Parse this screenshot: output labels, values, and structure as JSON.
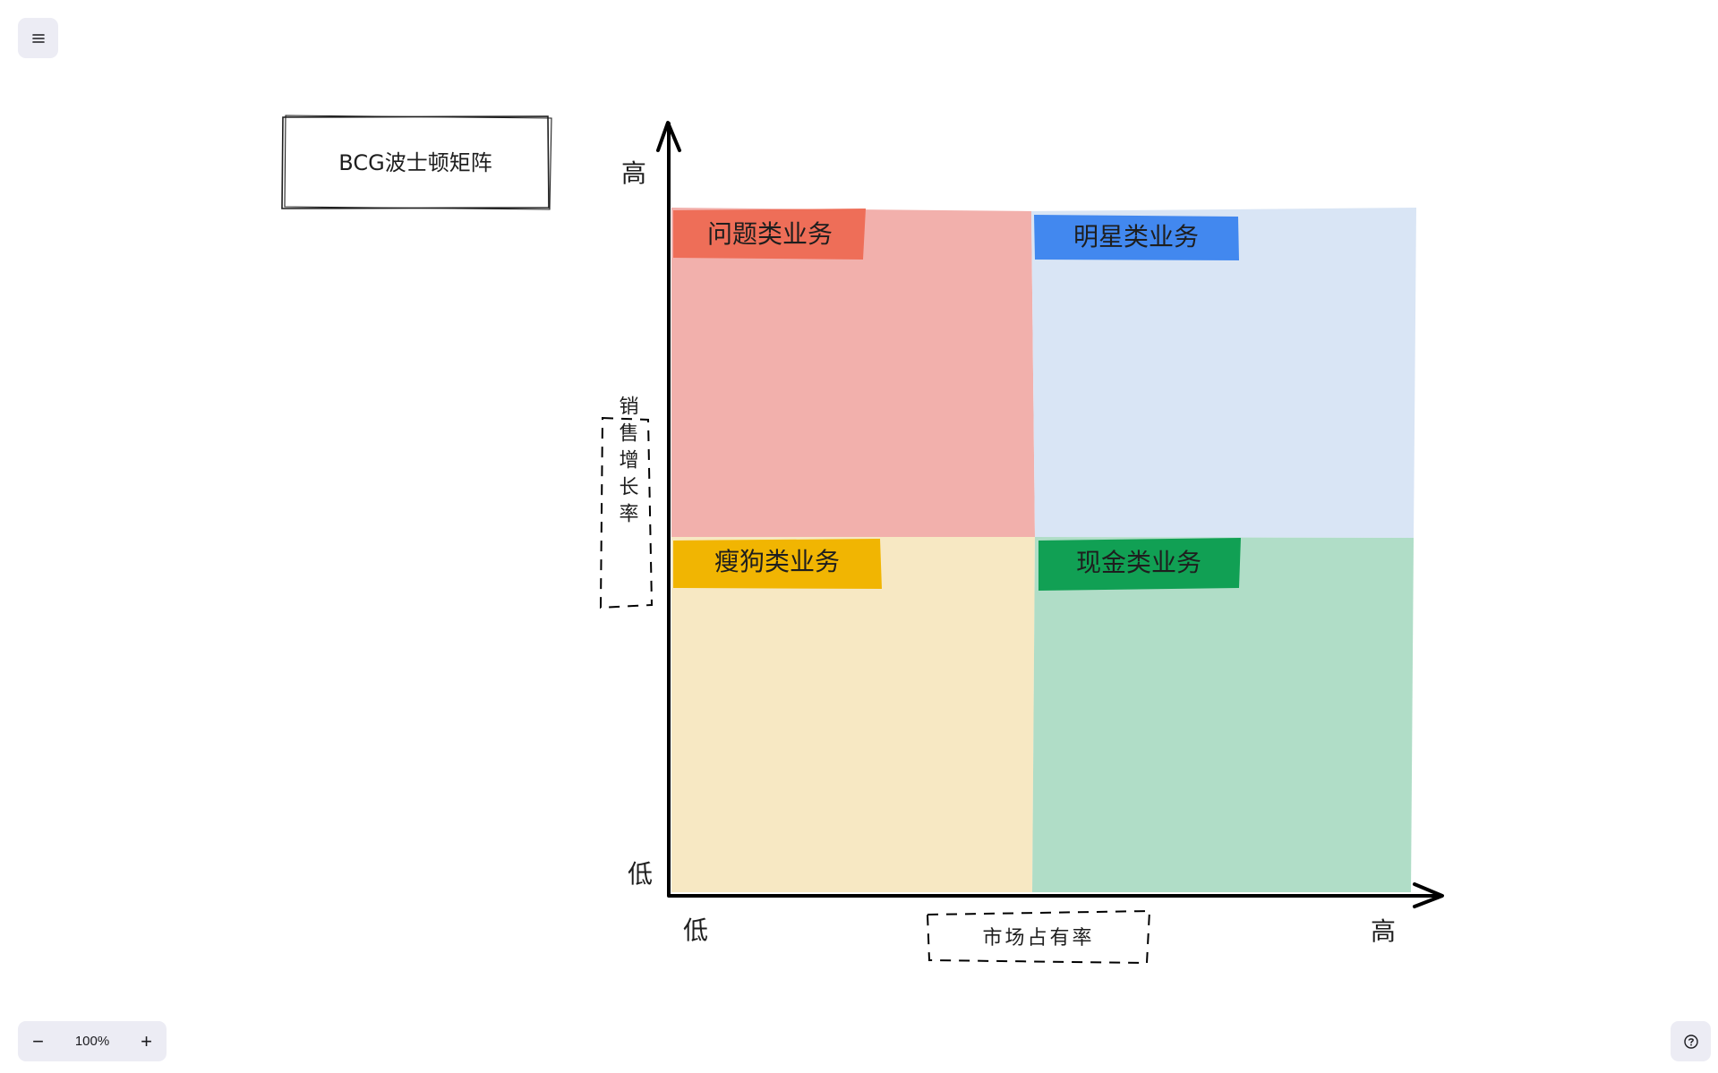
{
  "diagram": {
    "title": "BCG波士顿矩阵",
    "y_axis": {
      "label": "销售增长率",
      "high": "高",
      "low": "低"
    },
    "x_axis": {
      "label": "市场占有率",
      "low": "低",
      "high": "高"
    },
    "quadrants": [
      {
        "label": "问题类业务",
        "fill": "#f2b0ac",
        "tag": "#ee6e58"
      },
      {
        "label": "明星类业务",
        "fill": "#d9e5f5",
        "tag": "#4288ef"
      },
      {
        "label": "瘦狗类业务",
        "fill": "#f7e8c3",
        "tag": "#f1b502"
      },
      {
        "label": "现金类业务",
        "fill": "#b0ddc7",
        "tag": "#11a054"
      }
    ]
  },
  "toolbar": {
    "menu_icon": "hamburger-icon",
    "zoom_out": "−",
    "zoom_level": "100%",
    "zoom_in": "+",
    "help_icon": "help-icon"
  }
}
